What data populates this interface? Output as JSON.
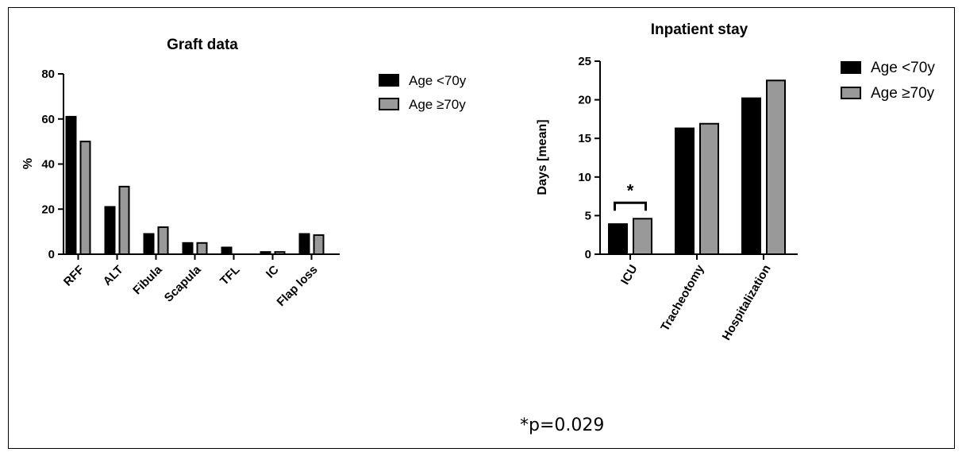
{
  "chart_data": [
    {
      "type": "bar",
      "title": "Graft data",
      "xlabel": "",
      "ylabel": "%",
      "ylim": [
        0,
        80
      ],
      "yticks": [
        0,
        20,
        40,
        60,
        80
      ],
      "categories": [
        "RFF",
        "ALT",
        "Fibula",
        "Scapula",
        "TFL",
        "IC",
        "Flap loss"
      ],
      "series": [
        {
          "name": "Age <70y",
          "color": "#000000",
          "values": [
            61,
            21,
            9,
            5,
            3,
            1,
            9
          ]
        },
        {
          "name": "Age ≥70y",
          "color": "#999999",
          "values": [
            50,
            30,
            12,
            5,
            0,
            1,
            8.5
          ]
        }
      ],
      "grid": false,
      "legend": "top-right"
    },
    {
      "type": "bar",
      "title": "Inpatient stay",
      "xlabel": "",
      "ylabel": "Days [mean]",
      "ylim": [
        0,
        25
      ],
      "yticks": [
        0,
        5,
        10,
        15,
        20,
        25
      ],
      "categories": [
        "ICU",
        "Tracheotomy",
        "Hospitalization"
      ],
      "series": [
        {
          "name": "Age <70y",
          "color": "#000000",
          "values": [
            3.9,
            16.3,
            20.2
          ]
        },
        {
          "name": "Age ≥70y",
          "color": "#999999",
          "values": [
            4.6,
            16.9,
            22.5
          ]
        }
      ],
      "annotations": [
        {
          "category": "ICU",
          "text": "*"
        }
      ],
      "grid": false,
      "legend": "top-right"
    }
  ],
  "footnote": "*p=0.029"
}
